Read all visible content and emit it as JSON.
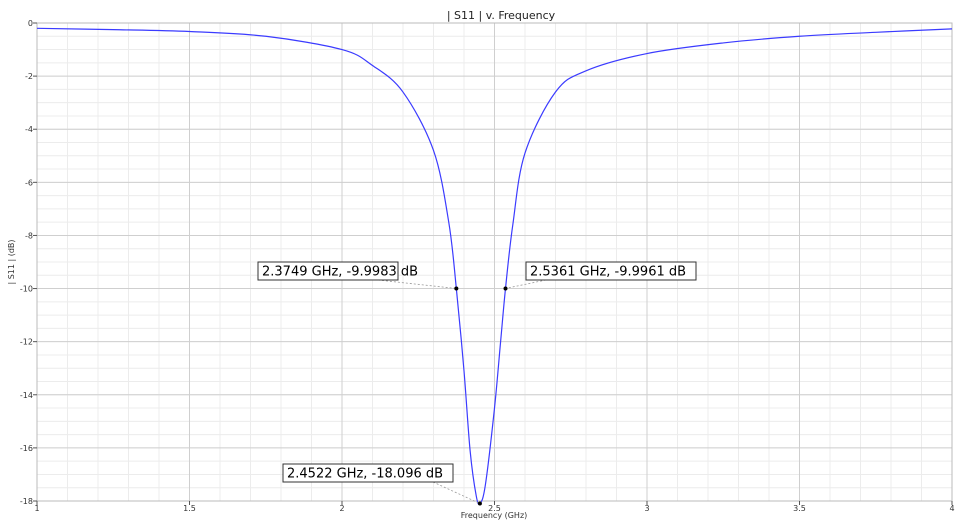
{
  "chart_data": {
    "type": "line",
    "title": "| S11 | v. Frequency",
    "xlabel": "Frequency (GHz)",
    "ylabel": "| S11 | (dB)",
    "xlim": [
      1,
      4
    ],
    "ylim": [
      -18,
      0
    ],
    "xticks": [
      1,
      1.5,
      2,
      2.5,
      3,
      3.5,
      4
    ],
    "xtick_labels": [
      "1",
      "1.5",
      "2",
      "2.5",
      "3",
      "3.5",
      "4"
    ],
    "yticks": [
      0,
      -2,
      -4,
      -6,
      -8,
      -10,
      -12,
      -14,
      -16,
      -18
    ],
    "ytick_labels": [
      "0",
      "-2",
      "-4",
      "-6",
      "-8",
      "-10",
      "-12",
      "-14",
      "-16",
      "-18"
    ],
    "grid": true,
    "series": [
      {
        "color": "#3b3bff",
        "x": [
          1.0,
          1.25,
          1.5,
          1.75,
          2.0,
          2.1,
          2.2,
          2.3,
          2.35,
          2.3749,
          2.4,
          2.42,
          2.44,
          2.4522,
          2.47,
          2.5,
          2.52,
          2.5361,
          2.56,
          2.6,
          2.7,
          2.8,
          3.0,
          3.25,
          3.5,
          3.75,
          4.0
        ],
        "y": [
          -0.2,
          -0.25,
          -0.32,
          -0.5,
          -1.0,
          -1.6,
          -2.6,
          -4.8,
          -7.5,
          -9.9983,
          -13.1,
          -16.1,
          -17.8,
          -18.096,
          -17.4,
          -14.5,
          -12.0,
          -9.9961,
          -7.6,
          -4.9,
          -2.6,
          -1.8,
          -1.15,
          -0.75,
          -0.5,
          -0.35,
          -0.22
        ]
      }
    ],
    "markers": [
      {
        "x": 2.3749,
        "y": -9.9983,
        "label": "2.3749 GHz, -9.9983 dB"
      },
      {
        "x": 2.5361,
        "y": -9.9961,
        "label": "2.5361 GHz, -9.9961 dB"
      },
      {
        "x": 2.4522,
        "y": -18.096,
        "label": "2.4522 GHz, -18.096 dB"
      }
    ]
  }
}
